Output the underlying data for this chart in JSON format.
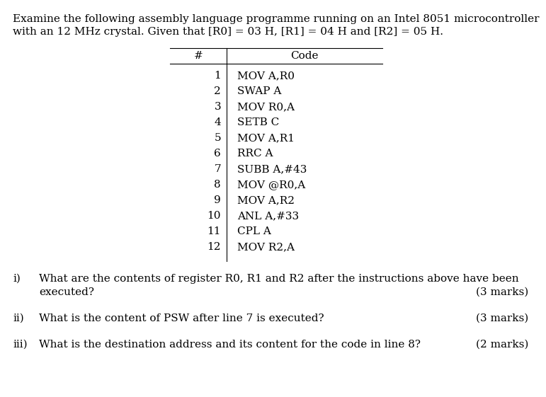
{
  "title_line1": "Examine the following assembly language programme running on an Intel 8051 microcontroller",
  "title_line2": "with an 12 MHz crystal. Given that [R0] = 03 H, [R1] = 04 H and [R2] = 05 H.",
  "table_header_num": "#",
  "table_header_code": "Code",
  "rows": [
    {
      "num": "1",
      "code": "MOV A,R0"
    },
    {
      "num": "2",
      "code": "SWAP A"
    },
    {
      "num": "3",
      "code": "MOV R0,A"
    },
    {
      "num": "4",
      "code": "SETB C"
    },
    {
      "num": "5",
      "code": "MOV A,R1"
    },
    {
      "num": "6",
      "code": "RRC A"
    },
    {
      "num": "7",
      "code": "SUBB A,#43"
    },
    {
      "num": "8",
      "code": "MOV @R0,A"
    },
    {
      "num": "9",
      "code": "MOV A,R2"
    },
    {
      "num": "10",
      "code": "ANL A,#33"
    },
    {
      "num": "11",
      "code": "CPL A"
    },
    {
      "num": "12",
      "code": "MOV R2,A"
    }
  ],
  "q1_prefix": "i)",
  "q1_line1": "What are the contents of register R0, R1 and R2 after the instructions above have been",
  "q1_line2": "executed?",
  "q1_marks": "(3 marks)",
  "q2_prefix": "ii)",
  "q2_text": "What is the content of PSW after line 7 is executed?",
  "q2_marks": "(3 marks)",
  "q3_prefix": "iii)",
  "q3_text": "What is the destination address and its content for the code in line 8?",
  "q3_marks": "(2 marks)",
  "bg_color": "#ffffff",
  "text_color": "#000000",
  "font_size": 11.0,
  "font_family": "DejaVu Serif"
}
